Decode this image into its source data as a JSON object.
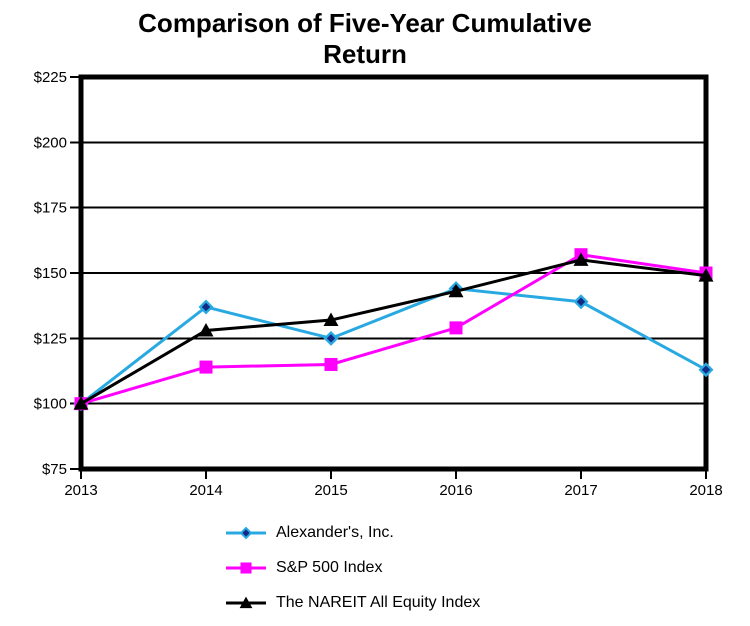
{
  "chart_data": {
    "type": "line",
    "title": "Comparison of Five-Year Cumulative Return",
    "xlabel": "",
    "ylabel": "",
    "categories": [
      "2013",
      "2014",
      "2015",
      "2016",
      "2017",
      "2018"
    ],
    "series": [
      {
        "name": "Alexander's, Inc.",
        "marker": "diamond",
        "color": "#29A9E1",
        "marker_fill": "#122B85",
        "values": [
          100,
          137,
          125,
          144,
          139,
          113
        ]
      },
      {
        "name": "S&P 500 Index",
        "marker": "square",
        "color": "#FF00FF",
        "marker_fill": "#FF00FF",
        "values": [
          100,
          114,
          115,
          129,
          157,
          150
        ]
      },
      {
        "name": "The NAREIT All Equity Index",
        "marker": "triangle",
        "color": "#000000",
        "marker_fill": "#000000",
        "values": [
          100,
          128,
          132,
          143,
          155,
          149
        ]
      }
    ],
    "ylim": [
      75,
      225
    ],
    "yticks": [
      {
        "value": 225,
        "label": "$225"
      },
      {
        "value": 200,
        "label": "$200"
      },
      {
        "value": 175,
        "label": "$175"
      },
      {
        "value": 150,
        "label": "$150"
      },
      {
        "value": 125,
        "label": "$125"
      },
      {
        "value": 100,
        "label": "$100"
      },
      {
        "value": 75,
        "label": "$75"
      }
    ],
    "grid": "horizontal",
    "legend_position": "bottom",
    "axis_color": "#000000",
    "background_color": "#FFFFFF"
  }
}
